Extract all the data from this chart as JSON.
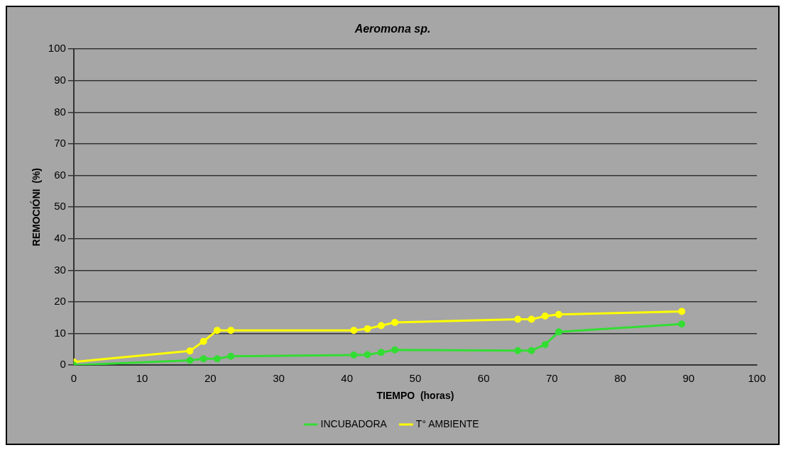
{
  "chart_data": {
    "type": "line",
    "title": "Aeromona sp.",
    "xlabel": "TIEMPO  (horas)",
    "ylabel": "REMOCIÓNI  (%)",
    "x": [
      0,
      17,
      19,
      21,
      23,
      41,
      43,
      45,
      47,
      65,
      67,
      69,
      71,
      89
    ],
    "series": [
      {
        "name": "INCUBADORA",
        "color": "#33dd33",
        "values": [
          0,
          1.5,
          2,
          2,
          2.8,
          3.2,
          3.3,
          4,
          4.8,
          4.6,
          4.6,
          6.5,
          10.5,
          13
        ]
      },
      {
        "name": "T° AMBIENTE",
        "color": "#ffff00",
        "values": [
          1,
          4.5,
          7.5,
          11,
          11,
          11,
          11.5,
          12.5,
          13.5,
          14.5,
          14.5,
          15.5,
          16,
          17
        ]
      }
    ],
    "xlim": [
      0,
      100
    ],
    "xticks": [
      0,
      10,
      20,
      30,
      40,
      50,
      60,
      70,
      80,
      90,
      100
    ],
    "ylim": [
      0,
      100
    ],
    "yticks": [
      0,
      10,
      20,
      30,
      40,
      50,
      60,
      70,
      80,
      90,
      100
    ],
    "grid": "y",
    "legend": "bottom",
    "marker": "circle",
    "line_style": "solid"
  }
}
